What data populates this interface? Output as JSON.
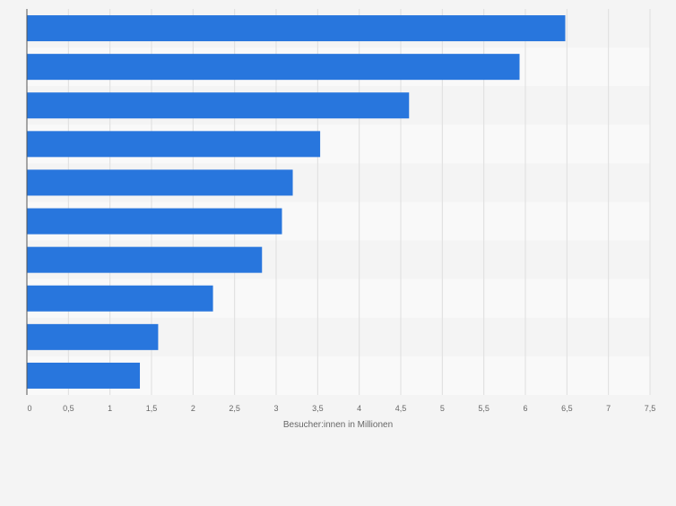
{
  "chart_data": {
    "type": "bar",
    "orientation": "horizontal",
    "categories": [
      "",
      "",
      "",
      "",
      "",
      "",
      "",
      "",
      "",
      ""
    ],
    "values": [
      6.48,
      5.93,
      4.6,
      3.53,
      3.2,
      3.07,
      2.83,
      2.24,
      1.58,
      1.36
    ],
    "title": "",
    "xlabel": "Besucher:innen in Millionen",
    "ylabel": "",
    "xlim": [
      0,
      7.5
    ],
    "x_ticks": [
      0,
      0.5,
      1,
      1.5,
      2,
      2.5,
      3,
      3.5,
      4,
      4.5,
      5,
      5.5,
      6,
      6.5,
      7,
      7.5
    ],
    "x_tick_labels": [
      "0",
      "0,5",
      "1",
      "1,5",
      "2",
      "2,5",
      "3",
      "3,5",
      "4",
      "4,5",
      "5",
      "5,5",
      "6",
      "6,5",
      "7",
      "7,5"
    ],
    "grid": true,
    "legend": "none",
    "bar_color": "#2876dd",
    "band_colors": [
      "#f4f4f4",
      "#f9f9f9"
    ],
    "grid_color": "#dedede",
    "axis_color": "#555555",
    "tick_label_color": "#666666"
  }
}
